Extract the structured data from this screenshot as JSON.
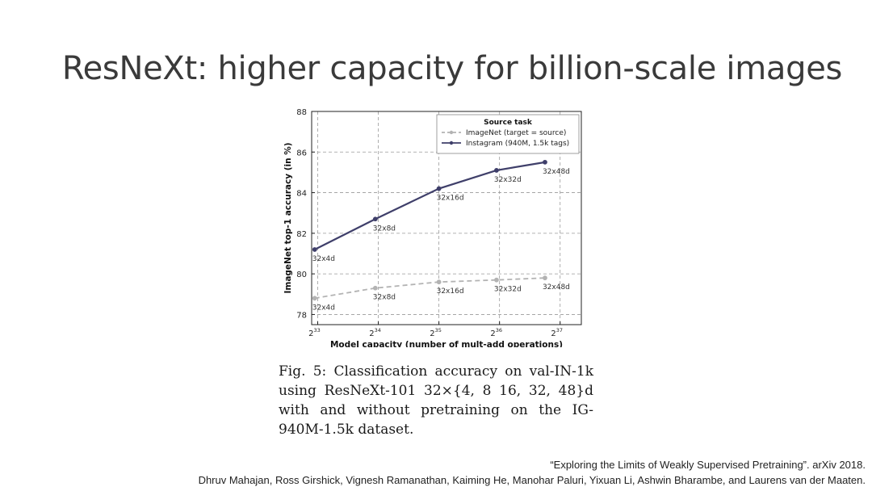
{
  "slide": {
    "title": "ResNeXt: higher capacity for billion-scale images",
    "caption_lines": [
      "Fig. 5: Classification accuracy on val-IN-1k",
      "using ResNeXt-101 32×{4, 8 16, 32, 48}d",
      "with and without pretraining on the IG-",
      "940M-1.5k dataset."
    ],
    "citation_title": "“Exploring the Limits of Weakly Supervised Pretraining”. arXiv 2018.",
    "citation_authors": "Dhruv Mahajan, Ross Girshick, Vignesh Ramanathan, Kaiming He, Manohar Paluri, Yixuan Li, Ashwin Bharambe, and Laurens van der Maaten."
  },
  "chart_data": {
    "type": "line",
    "xlabel": "Model capacity (number of mult-add operations)",
    "ylabel": "ImageNet top-1 accuracy (in %)",
    "x_scale": "log2",
    "x_ticks": [
      {
        "base": "2",
        "exp": "33",
        "value": 33
      },
      {
        "base": "2",
        "exp": "34",
        "value": 34
      },
      {
        "base": "2",
        "exp": "35",
        "value": 35
      },
      {
        "base": "2",
        "exp": "36",
        "value": 36
      },
      {
        "base": "2",
        "exp": "37",
        "value": 37
      }
    ],
    "y_ticks": [
      78,
      80,
      82,
      84,
      86,
      88
    ],
    "xlim": [
      32.9,
      37.35
    ],
    "ylim": [
      77.5,
      88
    ],
    "grid": true,
    "legend": {
      "title": "Source task",
      "placement": "top-right"
    },
    "series": [
      {
        "name": "ImageNet (target = source)",
        "color": "#b3b3b3",
        "style": "dashed",
        "points": [
          {
            "x": 32.95,
            "y": 78.8,
            "label": "32x4d"
          },
          {
            "x": 33.95,
            "y": 79.3,
            "label": "32x8d"
          },
          {
            "x": 35.0,
            "y": 79.6,
            "label": "32x16d"
          },
          {
            "x": 35.95,
            "y": 79.7,
            "label": "32x32d"
          },
          {
            "x": 36.75,
            "y": 79.8,
            "label": "32x48d"
          }
        ]
      },
      {
        "name": "Instagram (940M, 1.5k tags)",
        "color": "#3f3f6a",
        "style": "solid",
        "points": [
          {
            "x": 32.95,
            "y": 81.2,
            "label": "32x4d"
          },
          {
            "x": 33.95,
            "y": 82.7,
            "label": "32x8d"
          },
          {
            "x": 35.0,
            "y": 84.2,
            "label": "32x16d"
          },
          {
            "x": 35.95,
            "y": 85.1,
            "label": "32x32d"
          },
          {
            "x": 36.75,
            "y": 85.5,
            "label": "32x48d"
          }
        ]
      }
    ]
  }
}
